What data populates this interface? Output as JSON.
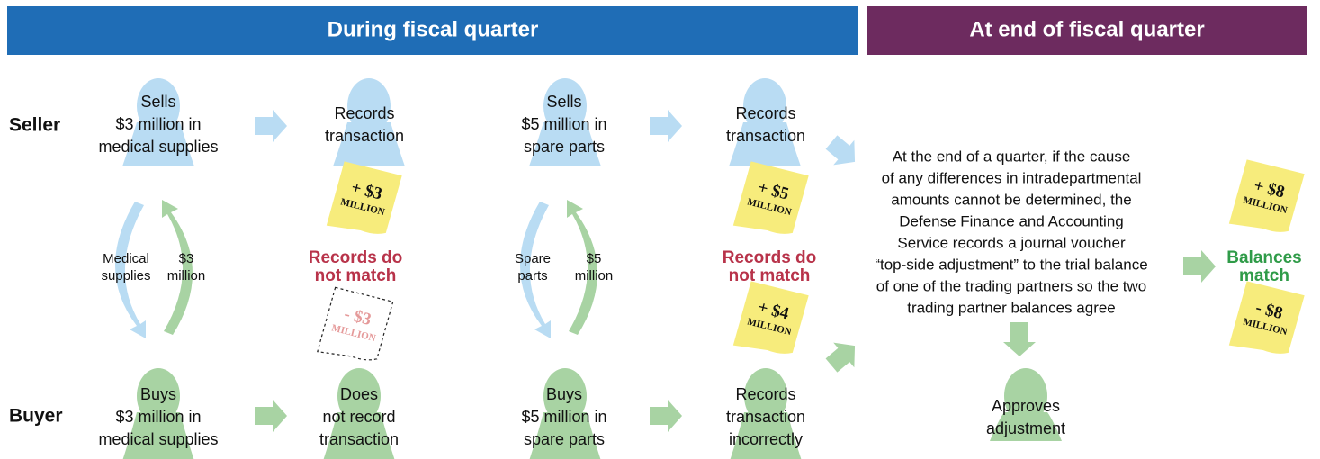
{
  "headers": {
    "during": "During fiscal quarter",
    "end": "At end of fiscal quarter"
  },
  "rows": {
    "seller": "Seller",
    "buyer": "Buyer"
  },
  "seller_steps": [
    [
      "Sells",
      "$3 million in",
      "medical supplies"
    ],
    [
      "Records",
      "transaction"
    ],
    [
      "Sells",
      "$5 million in",
      "spare parts"
    ],
    [
      "Records",
      "transaction"
    ]
  ],
  "buyer_steps": [
    [
      "Buys",
      "$3 million in",
      "medical supplies"
    ],
    [
      "Does",
      "not record",
      "transaction"
    ],
    [
      "Buys",
      "$5 million in",
      "spare parts"
    ],
    [
      "Records",
      "transaction",
      "incorrectly"
    ]
  ],
  "flows": [
    {
      "goods": [
        "Medical",
        "supplies"
      ],
      "payment": [
        "$3",
        "million"
      ]
    },
    {
      "goods": [
        "Spare",
        "parts"
      ],
      "payment": [
        "$5",
        "million"
      ]
    }
  ],
  "mismatch": [
    [
      "Records do",
      "not match"
    ],
    [
      "Records do",
      "not match"
    ]
  ],
  "notes": [
    {
      "amount": "+ $3",
      "unit": "MILLION"
    },
    {
      "amount": "- $3",
      "unit": "MILLION"
    },
    {
      "amount": "+ $5",
      "unit": "MILLION"
    },
    {
      "amount": "+ $4",
      "unit": "MILLION"
    },
    {
      "amount": "+ $8",
      "unit": "MILLION"
    },
    {
      "amount": "- $8",
      "unit": "MILLION"
    }
  ],
  "adjustment": [
    "At the end of a quarter, if the cause",
    "of any differences in intradepartmental",
    "amounts cannot be determined, the",
    "Defense Finance and Accounting",
    "Service records a journal voucher",
    "“top-side adjustment” to the trial balance",
    "of one of the trading partners so the two",
    "trading partner balances agree"
  ],
  "approver": [
    "Approves",
    "adjustment"
  ],
  "result": [
    "Balances",
    "match"
  ]
}
